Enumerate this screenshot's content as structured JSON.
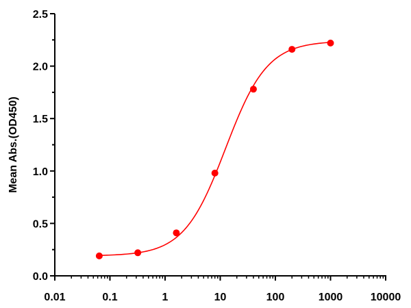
{
  "chart_data": {
    "type": "scatter",
    "title": "",
    "xlabel": "",
    "ylabel": "Mean Abs.(OD450)",
    "x_scale": "log",
    "xlim": [
      0.01,
      10000
    ],
    "ylim": [
      0,
      2.5
    ],
    "x_ticks": [
      0.01,
      0.1,
      1,
      10,
      100,
      1000,
      10000
    ],
    "x_tick_labels": [
      "0.01",
      "0.1",
      "1",
      "10",
      "100",
      "1000",
      "10000"
    ],
    "y_ticks": [
      0,
      0.5,
      1.0,
      1.5,
      2.0,
      2.5
    ],
    "y_tick_labels": [
      "0.0",
      "0.5",
      "1.0",
      "1.5",
      "2.0",
      "2.5"
    ],
    "grid": false,
    "legend": "none",
    "fit": "four-parameter logistic curve",
    "series": [
      {
        "color": "#ff0000",
        "x": [
          0.064,
          0.32,
          1.6,
          8,
          40,
          200,
          1000
        ],
        "y": [
          0.19,
          0.22,
          0.41,
          0.98,
          1.78,
          2.16,
          2.22
        ]
      }
    ]
  }
}
